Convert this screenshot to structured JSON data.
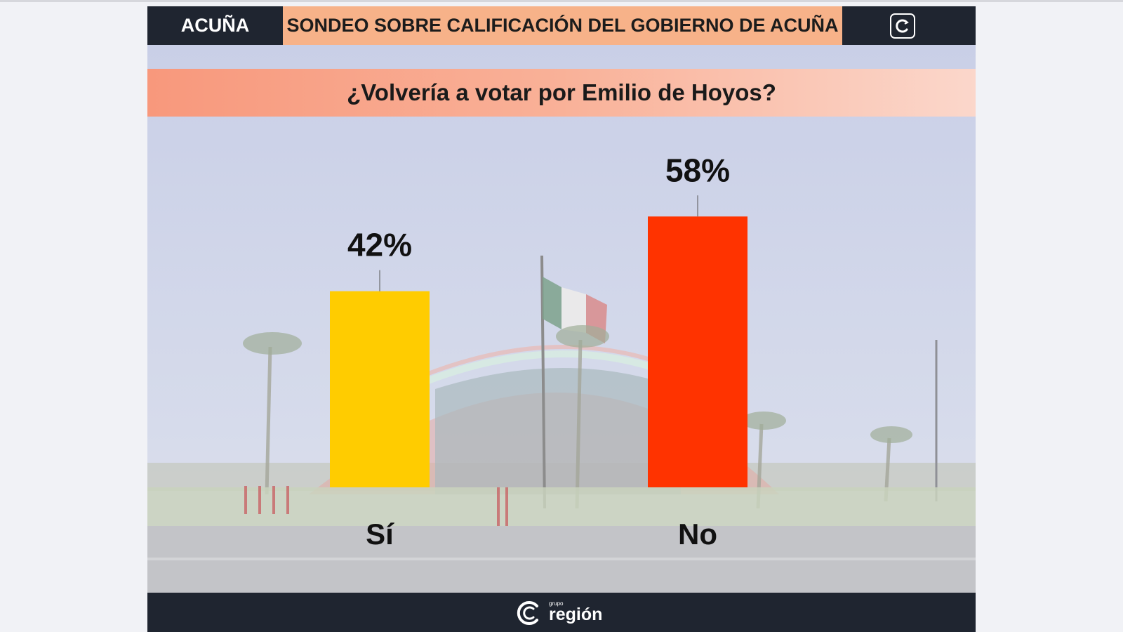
{
  "header": {
    "city": "ACUÑA",
    "headline": "SONDEO SOBRE CALIFICACIÓN DEL GOBIERNO DE ACUÑA",
    "corner_logo_icon": "circular-c-logo-icon"
  },
  "question": "¿Volvería a votar por Emilio de Hoyos?",
  "footer": {
    "brand_prefix": "grupo",
    "brand_name": "región",
    "brand_icon": "circular-c-logo-icon"
  },
  "chart_data": {
    "type": "bar",
    "title": "¿Volvería a votar por Emilio de Hoyos?",
    "categories": [
      "Sí",
      "No"
    ],
    "values": [
      42,
      58
    ],
    "value_labels": [
      "42%",
      "58%"
    ],
    "colors": [
      "#ffcc00",
      "#ff3300"
    ],
    "ylim": [
      0,
      100
    ],
    "grid": false,
    "legend": "none",
    "xlabel": "",
    "ylabel": ""
  },
  "colors": {
    "header_bg": "#1f2530",
    "headline_bg": "#f7b289",
    "question_band": "#f9a58b"
  }
}
